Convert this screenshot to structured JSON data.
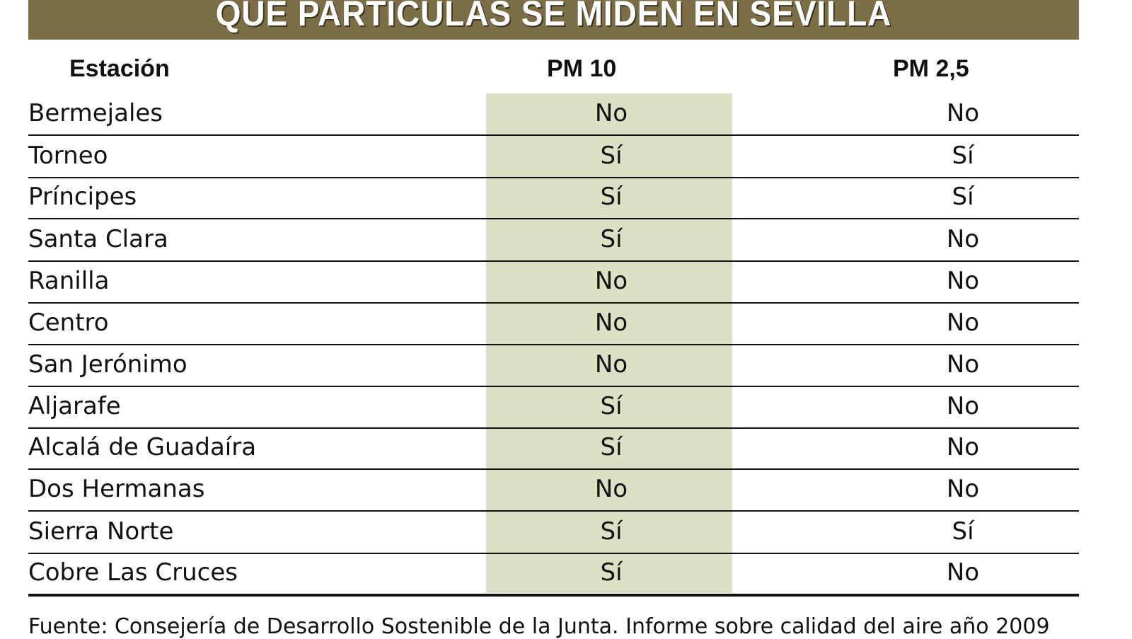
{
  "title": "QUE PARTICULAS SE MIDEN EN SEVILLA",
  "columns": [
    "Estación",
    "PM 10",
    "PM 2,5"
  ],
  "rows": [
    {
      "station": "Bermejales",
      "pm10": "No",
      "pm25": "No"
    },
    {
      "station": "Torneo",
      "pm10": "Sí",
      "pm25": "Sí"
    },
    {
      "station": "Príncipes",
      "pm10": "Sí",
      "pm25": "Sí"
    },
    {
      "station": "Santa Clara",
      "pm10": "Sí",
      "pm25": "No"
    },
    {
      "station": "Ranilla",
      "pm10": "No",
      "pm25": "No"
    },
    {
      "station": "Centro",
      "pm10": "No",
      "pm25": "No"
    },
    {
      "station": "San Jerónimo",
      "pm10": "No",
      "pm25": "No"
    },
    {
      "station": "Aljarafe",
      "pm10": "Sí",
      "pm25": "No"
    },
    {
      "station": "Alcalá de Guadaíra",
      "pm10": "Sí",
      "pm25": "No"
    },
    {
      "station": "Dos Hermanas",
      "pm10": "No",
      "pm25": "No"
    },
    {
      "station": "Sierra Norte",
      "pm10": "Sí",
      "pm25": "Sí"
    },
    {
      "station": "Cobre Las Cruces",
      "pm10": "Sí",
      "pm25": "No"
    }
  ],
  "footer": "Fuente: Consejería de Desarrollo Sostenible de la Junta. Informe sobre calidad del aire año 2009",
  "colors": {
    "banner": "#7b6d45",
    "highlight_column": "#dde0c5"
  }
}
